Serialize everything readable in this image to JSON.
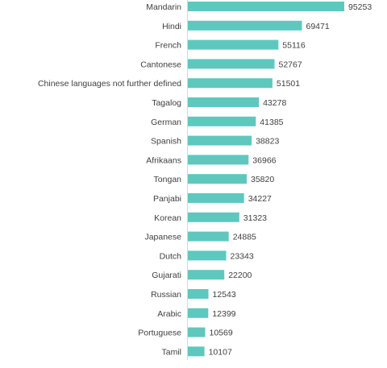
{
  "chart_data": {
    "type": "bar",
    "orientation": "horizontal",
    "categories": [
      "Mandarin",
      "Hindi",
      "French",
      "Cantonese",
      "Chinese languages not further defined",
      "Tagalog",
      "German",
      "Spanish",
      "Afrikaans",
      "Tongan",
      "Panjabi",
      "Korean",
      "Japanese",
      "Dutch",
      "Gujarati",
      "Russian",
      "Arabic",
      "Portuguese",
      "Tamil"
    ],
    "values": [
      95253,
      69471,
      55116,
      52767,
      51501,
      43278,
      41385,
      38823,
      36966,
      35820,
      34227,
      31323,
      24885,
      23343,
      22200,
      12543,
      12399,
      10569,
      10107
    ],
    "value_labels": [
      "95253",
      "69471",
      "55116",
      "52767",
      "51501",
      "43278",
      "41385",
      "38823",
      "36966",
      "35820",
      "34227",
      "31323",
      "24885",
      "23343",
      "22200",
      "12543",
      "12399",
      "10569",
      "10107"
    ],
    "title": "",
    "xlabel": "",
    "ylabel": "",
    "xlim": [
      0,
      95253
    ],
    "grid": false,
    "legend": "none",
    "bar_color": "#5ec8bf",
    "text_color": "#404040"
  }
}
